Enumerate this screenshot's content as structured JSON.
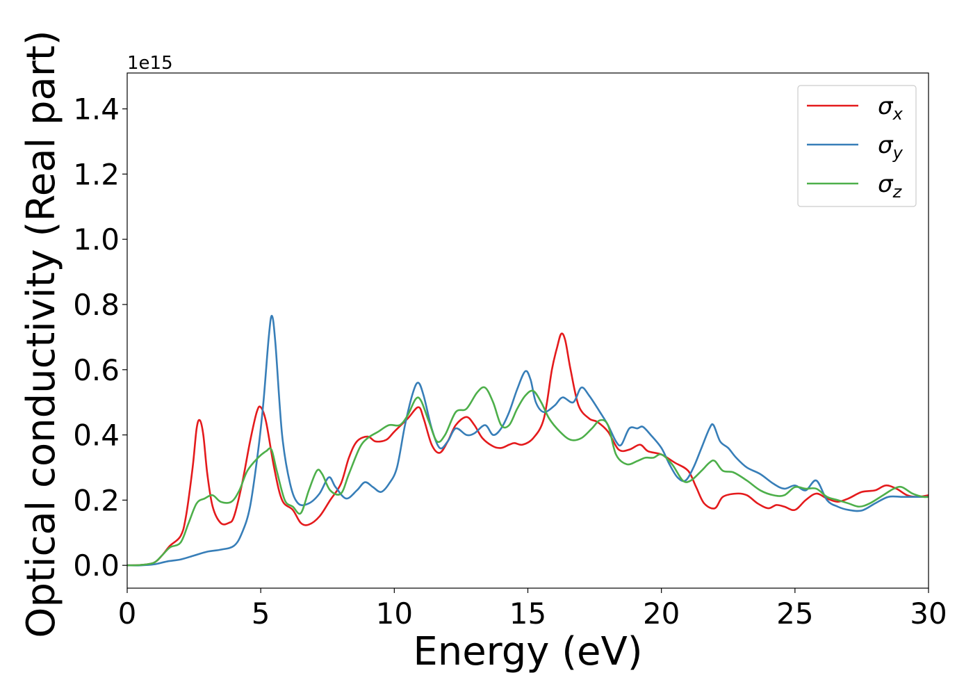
{
  "chart_data": {
    "type": "line",
    "xlabel": "Energy (eV)",
    "ylabel": "Optical conductivity (Real part)",
    "offset_label": "1e15",
    "xlim": [
      0,
      30
    ],
    "ylim": [
      -0.07,
      1.51
    ],
    "xticks": [
      0,
      5,
      10,
      15,
      20,
      25,
      30
    ],
    "xtick_labels": [
      "0",
      "5",
      "10",
      "15",
      "20",
      "25",
      "30"
    ],
    "yticks": [
      0.0,
      0.2,
      0.4,
      0.6,
      0.8,
      1.0,
      1.2,
      1.4
    ],
    "ytick_labels": [
      "0.0",
      "0.2",
      "0.4",
      "0.6",
      "0.8",
      "1.0",
      "1.2",
      "1.4"
    ],
    "grid": false,
    "legend_position": "top-right",
    "series": [
      {
        "name": "σx",
        "legend_base": "σ",
        "legend_sub": "x",
        "color": "#e41a1c",
        "points": [
          [
            0,
            0
          ],
          [
            0.5,
            0.001
          ],
          [
            1.0,
            0.008
          ],
          [
            1.3,
            0.03
          ],
          [
            1.6,
            0.06
          ],
          [
            2.0,
            0.09
          ],
          [
            2.2,
            0.15
          ],
          [
            2.45,
            0.3
          ],
          [
            2.6,
            0.42
          ],
          [
            2.72,
            0.445
          ],
          [
            2.85,
            0.4
          ],
          [
            3.0,
            0.28
          ],
          [
            3.2,
            0.18
          ],
          [
            3.5,
            0.13
          ],
          [
            3.8,
            0.13
          ],
          [
            4.0,
            0.15
          ],
          [
            4.3,
            0.25
          ],
          [
            4.6,
            0.38
          ],
          [
            4.85,
            0.47
          ],
          [
            5.0,
            0.485
          ],
          [
            5.2,
            0.44
          ],
          [
            5.5,
            0.3
          ],
          [
            5.8,
            0.2
          ],
          [
            6.2,
            0.17
          ],
          [
            6.5,
            0.13
          ],
          [
            6.8,
            0.125
          ],
          [
            7.2,
            0.15
          ],
          [
            7.6,
            0.2
          ],
          [
            8.0,
            0.25
          ],
          [
            8.3,
            0.33
          ],
          [
            8.6,
            0.38
          ],
          [
            9.0,
            0.395
          ],
          [
            9.3,
            0.38
          ],
          [
            9.7,
            0.385
          ],
          [
            10.0,
            0.41
          ],
          [
            10.5,
            0.45
          ],
          [
            10.9,
            0.485
          ],
          [
            11.1,
            0.45
          ],
          [
            11.4,
            0.37
          ],
          [
            11.7,
            0.345
          ],
          [
            12.0,
            0.38
          ],
          [
            12.3,
            0.43
          ],
          [
            12.7,
            0.455
          ],
          [
            13.0,
            0.43
          ],
          [
            13.3,
            0.39
          ],
          [
            13.7,
            0.365
          ],
          [
            14.0,
            0.36
          ],
          [
            14.3,
            0.37
          ],
          [
            14.5,
            0.375
          ],
          [
            14.8,
            0.37
          ],
          [
            15.2,
            0.39
          ],
          [
            15.6,
            0.45
          ],
          [
            15.9,
            0.6
          ],
          [
            16.1,
            0.67
          ],
          [
            16.25,
            0.71
          ],
          [
            16.4,
            0.69
          ],
          [
            16.6,
            0.6
          ],
          [
            16.9,
            0.49
          ],
          [
            17.3,
            0.45
          ],
          [
            17.6,
            0.44
          ],
          [
            18.0,
            0.41
          ],
          [
            18.4,
            0.355
          ],
          [
            18.8,
            0.355
          ],
          [
            19.2,
            0.37
          ],
          [
            19.5,
            0.35
          ],
          [
            20.0,
            0.34
          ],
          [
            20.5,
            0.315
          ],
          [
            21.0,
            0.29
          ],
          [
            21.3,
            0.24
          ],
          [
            21.6,
            0.19
          ],
          [
            22.0,
            0.175
          ],
          [
            22.3,
            0.21
          ],
          [
            22.8,
            0.22
          ],
          [
            23.2,
            0.215
          ],
          [
            23.6,
            0.19
          ],
          [
            24.0,
            0.175
          ],
          [
            24.3,
            0.185
          ],
          [
            24.6,
            0.18
          ],
          [
            25.0,
            0.17
          ],
          [
            25.4,
            0.2
          ],
          [
            25.8,
            0.22
          ],
          [
            26.2,
            0.205
          ],
          [
            26.6,
            0.195
          ],
          [
            27.0,
            0.205
          ],
          [
            27.5,
            0.225
          ],
          [
            28.0,
            0.23
          ],
          [
            28.4,
            0.245
          ],
          [
            28.8,
            0.235
          ],
          [
            29.2,
            0.215
          ],
          [
            29.6,
            0.21
          ],
          [
            30.0,
            0.215
          ]
        ]
      },
      {
        "name": "σy",
        "legend_base": "σ",
        "legend_sub": "y",
        "color": "#377eb8",
        "points": [
          [
            0,
            0
          ],
          [
            0.5,
            0.0
          ],
          [
            1.0,
            0.003
          ],
          [
            1.5,
            0.012
          ],
          [
            2.0,
            0.018
          ],
          [
            2.5,
            0.03
          ],
          [
            3.0,
            0.042
          ],
          [
            3.5,
            0.048
          ],
          [
            4.0,
            0.06
          ],
          [
            4.3,
            0.1
          ],
          [
            4.6,
            0.18
          ],
          [
            4.9,
            0.35
          ],
          [
            5.1,
            0.5
          ],
          [
            5.3,
            0.7
          ],
          [
            5.42,
            0.765
          ],
          [
            5.55,
            0.68
          ],
          [
            5.8,
            0.4
          ],
          [
            6.1,
            0.25
          ],
          [
            6.4,
            0.19
          ],
          [
            6.8,
            0.19
          ],
          [
            7.2,
            0.22
          ],
          [
            7.55,
            0.27
          ],
          [
            7.8,
            0.24
          ],
          [
            8.2,
            0.205
          ],
          [
            8.6,
            0.23
          ],
          [
            8.9,
            0.255
          ],
          [
            9.2,
            0.24
          ],
          [
            9.5,
            0.225
          ],
          [
            9.8,
            0.25
          ],
          [
            10.1,
            0.3
          ],
          [
            10.4,
            0.43
          ],
          [
            10.7,
            0.53
          ],
          [
            10.9,
            0.56
          ],
          [
            11.1,
            0.52
          ],
          [
            11.4,
            0.42
          ],
          [
            11.7,
            0.36
          ],
          [
            12.0,
            0.38
          ],
          [
            12.3,
            0.42
          ],
          [
            12.7,
            0.4
          ],
          [
            13.0,
            0.405
          ],
          [
            13.4,
            0.43
          ],
          [
            13.7,
            0.4
          ],
          [
            14.0,
            0.42
          ],
          [
            14.3,
            0.47
          ],
          [
            14.6,
            0.54
          ],
          [
            14.9,
            0.595
          ],
          [
            15.1,
            0.57
          ],
          [
            15.3,
            0.5
          ],
          [
            15.6,
            0.47
          ],
          [
            16.0,
            0.49
          ],
          [
            16.3,
            0.515
          ],
          [
            16.7,
            0.5
          ],
          [
            17.0,
            0.545
          ],
          [
            17.3,
            0.52
          ],
          [
            17.7,
            0.47
          ],
          [
            18.0,
            0.43
          ],
          [
            18.3,
            0.38
          ],
          [
            18.5,
            0.37
          ],
          [
            18.8,
            0.42
          ],
          [
            19.1,
            0.42
          ],
          [
            19.3,
            0.425
          ],
          [
            19.6,
            0.4
          ],
          [
            20.0,
            0.36
          ],
          [
            20.3,
            0.31
          ],
          [
            20.6,
            0.27
          ],
          [
            20.9,
            0.26
          ],
          [
            21.2,
            0.3
          ],
          [
            21.5,
            0.36
          ],
          [
            21.8,
            0.42
          ],
          [
            21.95,
            0.43
          ],
          [
            22.2,
            0.38
          ],
          [
            22.5,
            0.36
          ],
          [
            22.8,
            0.33
          ],
          [
            23.2,
            0.3
          ],
          [
            23.7,
            0.28
          ],
          [
            24.2,
            0.25
          ],
          [
            24.6,
            0.235
          ],
          [
            25.0,
            0.245
          ],
          [
            25.4,
            0.23
          ],
          [
            25.8,
            0.26
          ],
          [
            26.2,
            0.2
          ],
          [
            26.6,
            0.18
          ],
          [
            27.0,
            0.17
          ],
          [
            27.5,
            0.168
          ],
          [
            28.0,
            0.19
          ],
          [
            28.5,
            0.21
          ],
          [
            29.0,
            0.21
          ],
          [
            29.5,
            0.21
          ],
          [
            30.0,
            0.21
          ]
        ]
      },
      {
        "name": "σz",
        "legend_base": "σ",
        "legend_sub": "z",
        "color": "#4daf4a",
        "points": [
          [
            0,
            0
          ],
          [
            0.5,
            0.001
          ],
          [
            1.0,
            0.008
          ],
          [
            1.3,
            0.03
          ],
          [
            1.6,
            0.055
          ],
          [
            2.0,
            0.07
          ],
          [
            2.3,
            0.13
          ],
          [
            2.6,
            0.19
          ],
          [
            2.9,
            0.205
          ],
          [
            3.2,
            0.215
          ],
          [
            3.5,
            0.195
          ],
          [
            3.9,
            0.195
          ],
          [
            4.2,
            0.23
          ],
          [
            4.5,
            0.29
          ],
          [
            4.9,
            0.33
          ],
          [
            5.2,
            0.35
          ],
          [
            5.4,
            0.355
          ],
          [
            5.6,
            0.29
          ],
          [
            5.9,
            0.2
          ],
          [
            6.2,
            0.18
          ],
          [
            6.5,
            0.16
          ],
          [
            6.8,
            0.23
          ],
          [
            7.1,
            0.29
          ],
          [
            7.3,
            0.28
          ],
          [
            7.6,
            0.23
          ],
          [
            8.0,
            0.22
          ],
          [
            8.3,
            0.28
          ],
          [
            8.7,
            0.36
          ],
          [
            9.0,
            0.39
          ],
          [
            9.4,
            0.41
          ],
          [
            9.8,
            0.43
          ],
          [
            10.2,
            0.43
          ],
          [
            10.5,
            0.46
          ],
          [
            10.8,
            0.51
          ],
          [
            11.0,
            0.505
          ],
          [
            11.3,
            0.44
          ],
          [
            11.6,
            0.38
          ],
          [
            11.9,
            0.4
          ],
          [
            12.3,
            0.47
          ],
          [
            12.7,
            0.48
          ],
          [
            13.1,
            0.53
          ],
          [
            13.4,
            0.545
          ],
          [
            13.7,
            0.5
          ],
          [
            14.0,
            0.43
          ],
          [
            14.3,
            0.43
          ],
          [
            14.6,
            0.48
          ],
          [
            14.9,
            0.52
          ],
          [
            15.2,
            0.535
          ],
          [
            15.5,
            0.5
          ],
          [
            15.8,
            0.45
          ],
          [
            16.2,
            0.41
          ],
          [
            16.6,
            0.385
          ],
          [
            17.0,
            0.39
          ],
          [
            17.4,
            0.42
          ],
          [
            17.7,
            0.445
          ],
          [
            18.0,
            0.43
          ],
          [
            18.3,
            0.34
          ],
          [
            18.7,
            0.31
          ],
          [
            19.1,
            0.32
          ],
          [
            19.4,
            0.33
          ],
          [
            19.7,
            0.33
          ],
          [
            20.0,
            0.34
          ],
          [
            20.4,
            0.31
          ],
          [
            20.8,
            0.26
          ],
          [
            21.1,
            0.26
          ],
          [
            21.5,
            0.29
          ],
          [
            21.8,
            0.315
          ],
          [
            22.0,
            0.32
          ],
          [
            22.3,
            0.29
          ],
          [
            22.7,
            0.285
          ],
          [
            23.2,
            0.26
          ],
          [
            23.7,
            0.23
          ],
          [
            24.2,
            0.215
          ],
          [
            24.6,
            0.215
          ],
          [
            25.0,
            0.24
          ],
          [
            25.4,
            0.235
          ],
          [
            25.8,
            0.235
          ],
          [
            26.2,
            0.21
          ],
          [
            26.6,
            0.2
          ],
          [
            27.0,
            0.19
          ],
          [
            27.4,
            0.18
          ],
          [
            27.8,
            0.19
          ],
          [
            28.3,
            0.215
          ],
          [
            28.7,
            0.235
          ],
          [
            29.0,
            0.24
          ],
          [
            29.4,
            0.22
          ],
          [
            29.8,
            0.21
          ],
          [
            30.0,
            0.21
          ]
        ]
      }
    ]
  }
}
